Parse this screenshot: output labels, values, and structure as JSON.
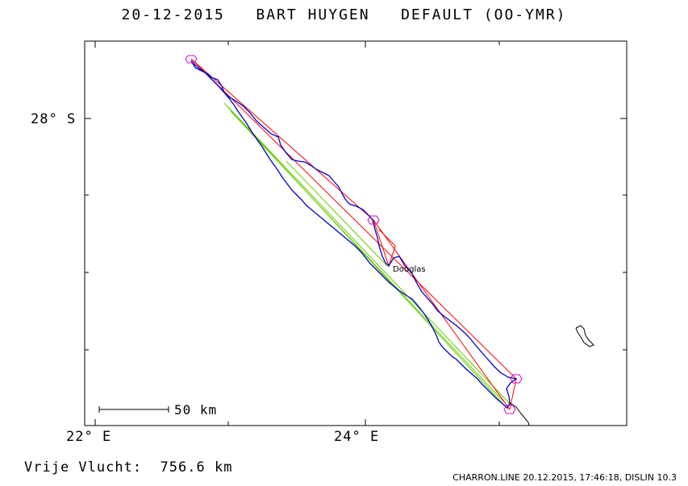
{
  "header": {
    "title": "20-12-2015   BART HUYGEN   DEFAULT (OO-YMR)"
  },
  "map": {
    "lat_label": "28° S",
    "lon_labels": [
      "22° E",
      "24° E"
    ],
    "place_label": "Douglas",
    "scale_label": "50 km",
    "colors": {
      "track": "#0000cc",
      "legs": "#ff0000",
      "projection": "#66cc00",
      "turnpoints": "#cc00cc",
      "coast": "#000000"
    }
  },
  "footer": {
    "distance_label": "Vrije Vlucht:",
    "distance_value": "756.6 km",
    "credit": "CHARRON.LINE 20.12.2015, 17:46:18, DISLIN 10.3"
  }
}
